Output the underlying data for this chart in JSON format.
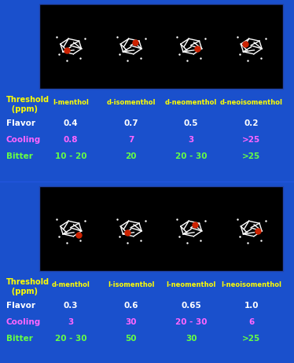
{
  "background_color": "#1a50cc",
  "top_section": {
    "compounds": [
      "l-menthol",
      "d-isomenthol",
      "d-neomenthol",
      "d-neoisomenthol"
    ],
    "rows": [
      {
        "label": "Flavor",
        "values": [
          "0.4",
          "0.7",
          "0.5",
          "0.2"
        ],
        "label_color": "#ffffff",
        "value_color": "#ffffff"
      },
      {
        "label": "Cooling",
        "values": [
          "0.8",
          "7",
          "3",
          ">25"
        ],
        "label_color": "#ff66ff",
        "value_color": "#ff66ff"
      },
      {
        "label": "Bitter",
        "values": [
          "10 - 20",
          "20",
          "20 - 30",
          ">25"
        ],
        "label_color": "#66ff44",
        "value_color": "#66ff44"
      }
    ]
  },
  "bottom_section": {
    "compounds": [
      "d-menthol",
      "l-isomenthol",
      "l-neomenthol",
      "l-neoisomenthol"
    ],
    "rows": [
      {
        "label": "Flavor",
        "values": [
          "0.3",
          "0.6",
          "0.65",
          "1.0"
        ],
        "label_color": "#ffffff",
        "value_color": "#ffffff"
      },
      {
        "label": "Cooling",
        "values": [
          "3",
          "30",
          "20 - 30",
          "6"
        ],
        "label_color": "#ff66ff",
        "value_color": "#ff66ff"
      },
      {
        "label": "Bitter",
        "values": [
          "20 - 30",
          "50",
          "30",
          ">25"
        ],
        "label_color": "#66ff44",
        "value_color": "#66ff44"
      }
    ]
  },
  "threshold_label_color": "#ffff00",
  "compound_name_color": "#ffff00",
  "img_box_color": "#000000",
  "img_banner_edge": "#2244aa",
  "figsize": [
    3.74,
    4.62
  ],
  "dpi": 100
}
